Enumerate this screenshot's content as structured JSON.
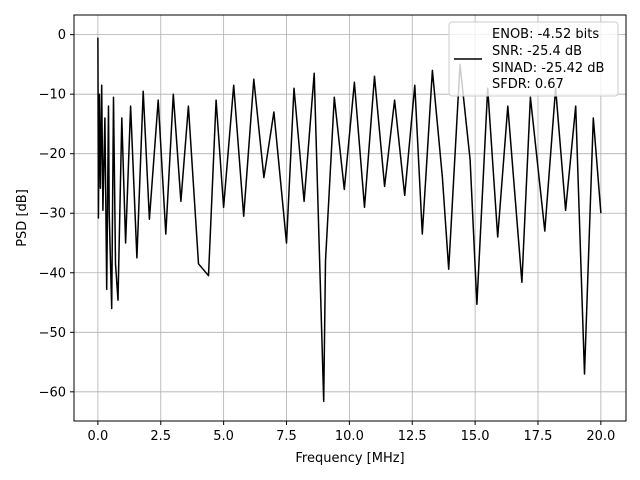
{
  "chart_data": {
    "type": "line",
    "xlabel": "Frequency [MHz]",
    "ylabel": "PSD [dB]",
    "xlim": [
      -0.95,
      21.0
    ],
    "ylim": [
      -64.9,
      3.3
    ],
    "x_ticks": [
      0.0,
      2.5,
      5.0,
      7.5,
      10.0,
      12.5,
      15.0,
      17.5,
      20.0
    ],
    "x_tick_labels": [
      "0.0",
      "2.5",
      "5.0",
      "7.5",
      "10.0",
      "12.5",
      "15.0",
      "17.5",
      "20.0"
    ],
    "y_ticks": [
      0,
      -10,
      -20,
      -30,
      -40,
      -50,
      -60
    ],
    "y_tick_labels": [
      "0",
      "−10",
      "−20",
      "−30",
      "−40",
      "−50",
      "−60"
    ],
    "grid": true,
    "legend_position": "top-right",
    "line_color": "#000000",
    "series": [
      {
        "x": [
          0.0,
          0.02,
          0.06,
          0.1,
          0.15,
          0.2,
          0.28,
          0.35,
          0.42,
          0.45,
          0.55,
          0.62,
          0.7,
          0.8,
          0.95,
          1.1,
          1.3,
          1.55,
          1.8,
          2.05,
          2.4,
          2.7,
          3.0,
          3.3,
          3.6,
          4.0,
          4.4,
          4.7,
          5.0,
          5.4,
          5.8,
          6.2,
          6.6,
          7.0,
          7.5,
          7.8,
          8.2,
          8.6,
          8.98,
          9.05,
          9.4,
          9.8,
          10.2,
          10.6,
          11.0,
          11.4,
          11.8,
          12.2,
          12.6,
          12.9,
          13.3,
          13.7,
          13.95,
          14.4,
          14.8,
          15.07,
          15.5,
          15.9,
          16.3,
          16.86,
          17.2,
          17.77,
          18.2,
          18.6,
          19.0,
          19.35,
          19.7,
          20.0
        ],
        "y": [
          -0.5,
          -30.8,
          -10.0,
          -25.8,
          -8.5,
          -29.5,
          -14.0,
          -42.8,
          -12.0,
          -30.0,
          -46.0,
          -10.5,
          -38.5,
          -44.6,
          -14.0,
          -35.0,
          -12.0,
          -37.5,
          -9.5,
          -31.0,
          -11.0,
          -33.5,
          -10.0,
          -28.0,
          -12.0,
          -38.5,
          -40.5,
          -11.0,
          -29.0,
          -8.5,
          -30.5,
          -7.5,
          -24.0,
          -13.0,
          -35.0,
          -9.0,
          -28.0,
          -6.5,
          -61.6,
          -38.0,
          -10.5,
          -26.0,
          -8.0,
          -29.0,
          -7.0,
          -25.5,
          -11.0,
          -27.0,
          -8.5,
          -33.5,
          -6.0,
          -24.0,
          -39.4,
          -5.0,
          -21.0,
          -45.3,
          -9.0,
          -34.0,
          -12.0,
          -41.6,
          -10.5,
          -33.0,
          -9.0,
          -29.5,
          -12.0,
          -57.0,
          -14.0,
          -30.0
        ]
      }
    ]
  },
  "legend": {
    "enob": "ENOB: -4.52 bits",
    "snr": "SNR: -25.4 dB",
    "sinad": "SINAD: -25.42 dB",
    "sfdr": "SFDR: 0.67"
  }
}
